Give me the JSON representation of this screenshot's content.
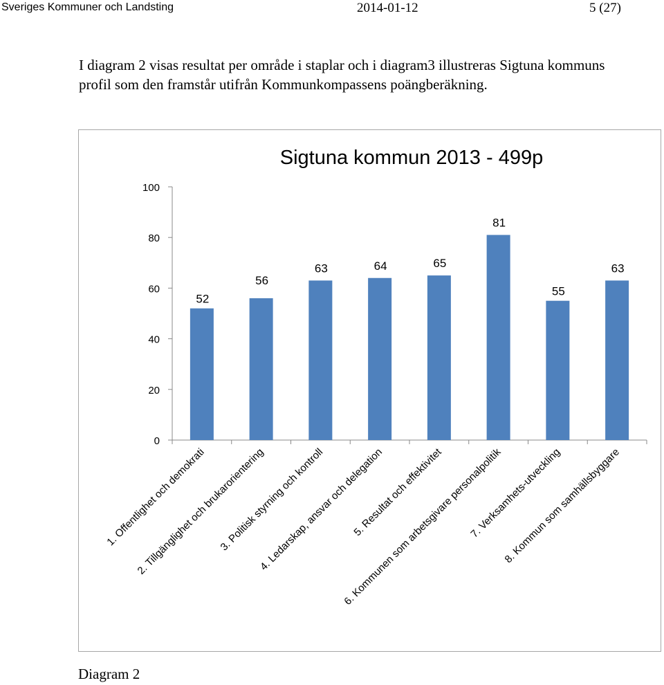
{
  "header": {
    "organization": "Sveriges Kommuner och Landsting",
    "date": "2014-01-12",
    "page": "5 (27)"
  },
  "intro": {
    "line1": "I diagram 2 visas resultat per område i staplar och i diagram3 illustreras Sigtuna kommuns",
    "line2": "profil som den framstår utifrån Kommunkompassens poängberäkning."
  },
  "caption": "Diagram 2",
  "colors": {
    "bar": "#4f81bd",
    "axis": "#888888",
    "text": "#000000"
  },
  "chart_data": {
    "type": "bar",
    "title": "Sigtuna kommun 2013 - 499p",
    "categories": [
      "1. Offentlighet och demokrati",
      "2. Tillgänglighet och brukarorientering",
      "3. Politisk styrning och kontroll",
      "4. Ledarskap, ansvar och delegation",
      "5. Resultat och effektivitet",
      "6. Kommunen som arbetsgivare personalpolitik",
      "7. Verksamhets-utveckling",
      "8. Kommun som samhällsbyggare"
    ],
    "values": [
      52,
      56,
      63,
      64,
      65,
      81,
      55,
      63
    ],
    "ylim": [
      0,
      100
    ],
    "yticks": [
      0,
      20,
      40,
      60,
      80,
      100
    ],
    "grid": false,
    "legend": "none"
  }
}
